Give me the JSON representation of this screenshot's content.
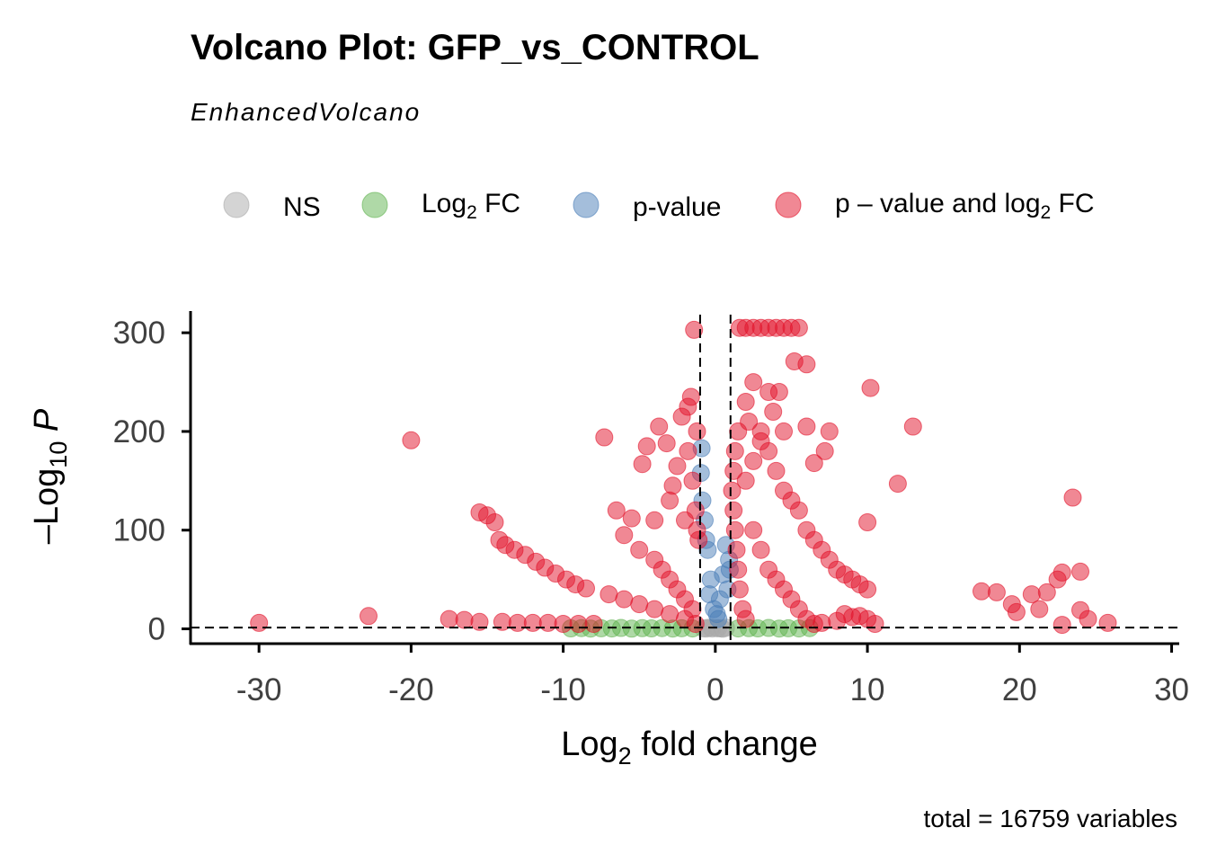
{
  "chart_data": {
    "type": "scatter",
    "title": "Volcano Plot: GFP_vs_CONTROL",
    "subtitle": "EnhancedVolcano",
    "xlabel": "Log2 fold change",
    "ylabel": "-Log10 P",
    "caption": "total = 16759 variables",
    "xlim": [
      -34.5,
      30.5
    ],
    "ylim": [
      -15,
      322
    ],
    "xticks": [
      -30,
      -20,
      -10,
      0,
      10,
      20,
      30
    ],
    "yticks": [
      0,
      100,
      200,
      300
    ],
    "fc_cutoff": [
      -1,
      1
    ],
    "p_cutoff": 1.3,
    "grid": false,
    "legend_position": "top",
    "legend": [
      {
        "key": "NS",
        "label": "NS",
        "color": "#a9a9a9"
      },
      {
        "key": "FC",
        "label": "Log",
        "sub": "2",
        "label_after": " FC",
        "color": "#5fb34f"
      },
      {
        "key": "P",
        "label": "p-value",
        "color": "#4a7db8"
      },
      {
        "key": "FC_P",
        "label": "p – value and log",
        "sub": "2",
        "label_after": " FC",
        "color": "#e2122a"
      }
    ],
    "series": [
      {
        "name": "NS",
        "color": "#a9a9a9",
        "points": [
          [
            -0.8,
            0.5
          ],
          [
            -0.5,
            1
          ],
          [
            -0.2,
            0.3
          ],
          [
            0.1,
            0.8
          ],
          [
            0.4,
            0.4
          ],
          [
            0.7,
            1.1
          ],
          [
            -0.6,
            0.2
          ],
          [
            0.2,
            0.6
          ],
          [
            -0.3,
            1.2
          ],
          [
            0.5,
            0.1
          ]
        ]
      },
      {
        "name": "FC",
        "color": "#5fb34f",
        "points": [
          [
            -9.5,
            0.5
          ],
          [
            -8.8,
            0.8
          ],
          [
            -8.2,
            0.3
          ],
          [
            -7.5,
            0.6
          ],
          [
            -6.8,
            0.4
          ],
          [
            -6.2,
            0.9
          ],
          [
            -5.5,
            0.2
          ],
          [
            -4.8,
            0.7
          ],
          [
            -4.2,
            0.5
          ],
          [
            -3.5,
            0.8
          ],
          [
            -2.8,
            0.3
          ],
          [
            -2.2,
            0.6
          ],
          [
            -1.5,
            0.4
          ],
          [
            1.5,
            0.4
          ],
          [
            2.2,
            0.7
          ],
          [
            2.8,
            0.5
          ],
          [
            3.5,
            0.9
          ],
          [
            4.2,
            0.3
          ],
          [
            4.8,
            0.6
          ],
          [
            5.5,
            0.4
          ],
          [
            6.2,
            0.8
          ]
        ]
      },
      {
        "name": "p-value",
        "color": "#4a7db8",
        "points": [
          [
            -0.9,
            183
          ],
          [
            -0.95,
            158
          ],
          [
            -0.7,
            110
          ],
          [
            -0.5,
            80
          ],
          [
            -0.3,
            50
          ],
          [
            -0.1,
            20
          ],
          [
            0.1,
            15
          ],
          [
            0.3,
            30
          ],
          [
            0.5,
            55
          ],
          [
            0.7,
            85
          ],
          [
            0.9,
            70
          ],
          [
            -0.85,
            130
          ],
          [
            -0.6,
            90
          ],
          [
            0.8,
            40
          ],
          [
            0.95,
            60
          ],
          [
            -0.4,
            35
          ],
          [
            0.2,
            10
          ]
        ]
      },
      {
        "name": "p – value and log2 FC",
        "color": "#e2122a",
        "points": [
          [
            -30,
            6
          ],
          [
            -22.8,
            13
          ],
          [
            -20,
            191
          ],
          [
            -17.5,
            10
          ],
          [
            -16.5,
            9
          ],
          [
            -15.5,
            118
          ],
          [
            -15,
            115
          ],
          [
            -14.5,
            108
          ],
          [
            -14.2,
            90
          ],
          [
            -13.8,
            85
          ],
          [
            -13.2,
            80
          ],
          [
            -12.5,
            75
          ],
          [
            -11.8,
            68
          ],
          [
            -11.2,
            62
          ],
          [
            -10.5,
            56
          ],
          [
            -9.8,
            50
          ],
          [
            -9.2,
            45
          ],
          [
            -8.5,
            41
          ],
          [
            -15.5,
            7
          ],
          [
            -14,
            7
          ],
          [
            -13,
            6
          ],
          [
            -12,
            6
          ],
          [
            -11,
            6
          ],
          [
            -10,
            5
          ],
          [
            -9,
            5
          ],
          [
            -8,
            5
          ],
          [
            -7.3,
            194
          ],
          [
            -6.5,
            120
          ],
          [
            -5.5,
            112
          ],
          [
            -4.5,
            185
          ],
          [
            -4.8,
            167
          ],
          [
            -3.7,
            205
          ],
          [
            -3.2,
            188
          ],
          [
            -2.8,
            145
          ],
          [
            -2.2,
            215
          ],
          [
            -1.8,
            225
          ],
          [
            -1.6,
            235
          ],
          [
            -1.2,
            200
          ],
          [
            -6,
            95
          ],
          [
            -5,
            80
          ],
          [
            -4,
            70
          ],
          [
            -3.5,
            60
          ],
          [
            -3,
            50
          ],
          [
            -2.5,
            40
          ],
          [
            -2,
            30
          ],
          [
            -1.5,
            20
          ],
          [
            -7,
            35
          ],
          [
            -6,
            30
          ],
          [
            -5,
            25
          ],
          [
            -4,
            20
          ],
          [
            -3,
            15
          ],
          [
            -2,
            10
          ],
          [
            -1.3,
            5
          ],
          [
            -1.5,
            150
          ],
          [
            -1.3,
            120
          ],
          [
            -1.2,
            100
          ],
          [
            -1.1,
            90
          ],
          [
            -2.5,
            165
          ],
          [
            -3,
            130
          ],
          [
            -4,
            110
          ],
          [
            -2,
            110
          ],
          [
            -1.8,
            180
          ],
          [
            -1.4,
            303
          ],
          [
            1.6,
            305
          ],
          [
            2,
            305
          ],
          [
            2.5,
            305
          ],
          [
            3,
            305
          ],
          [
            3.5,
            305
          ],
          [
            4,
            305
          ],
          [
            4.5,
            305
          ],
          [
            5,
            305
          ],
          [
            5.5,
            305
          ],
          [
            5.2,
            271
          ],
          [
            6,
            268
          ],
          [
            4.2,
            240
          ],
          [
            3.5,
            240
          ],
          [
            2.5,
            250
          ],
          [
            2,
            230
          ],
          [
            1.5,
            200
          ],
          [
            1.3,
            180
          ],
          [
            1.2,
            160
          ],
          [
            1.1,
            140
          ],
          [
            1.2,
            120
          ],
          [
            1.3,
            100
          ],
          [
            1.4,
            80
          ],
          [
            1.5,
            60
          ],
          [
            1.6,
            40
          ],
          [
            1.8,
            20
          ],
          [
            2,
            10
          ],
          [
            3,
            200
          ],
          [
            3.5,
            180
          ],
          [
            4,
            160
          ],
          [
            4.5,
            140
          ],
          [
            5,
            130
          ],
          [
            5.5,
            120
          ],
          [
            6,
            100
          ],
          [
            6.5,
            90
          ],
          [
            7,
            80
          ],
          [
            7.5,
            70
          ],
          [
            8,
            60
          ],
          [
            8.5,
            55
          ],
          [
            9,
            50
          ],
          [
            9.5,
            45
          ],
          [
            10,
            40
          ],
          [
            6,
            205
          ],
          [
            7.5,
            200
          ],
          [
            7.2,
            180
          ],
          [
            6.5,
            168
          ],
          [
            10.2,
            244
          ],
          [
            13,
            205
          ],
          [
            12,
            147
          ],
          [
            10,
            108
          ],
          [
            8.5,
            15
          ],
          [
            9,
            12
          ],
          [
            9.5,
            13
          ],
          [
            10,
            10
          ],
          [
            10.5,
            5
          ],
          [
            8,
            8
          ],
          [
            7,
            6
          ],
          [
            6.5,
            5
          ],
          [
            2.5,
            100
          ],
          [
            3,
            80
          ],
          [
            3.5,
            60
          ],
          [
            4,
            50
          ],
          [
            4.5,
            40
          ],
          [
            5,
            30
          ],
          [
            5.5,
            20
          ],
          [
            6,
            10
          ],
          [
            2,
            150
          ],
          [
            2.5,
            170
          ],
          [
            3,
            190
          ],
          [
            2.2,
            210
          ],
          [
            3.8,
            220
          ],
          [
            4.5,
            200
          ],
          [
            17.5,
            38
          ],
          [
            18.5,
            37
          ],
          [
            19.5,
            25
          ],
          [
            19.8,
            17
          ],
          [
            20.8,
            35
          ],
          [
            21.3,
            20
          ],
          [
            21.8,
            37
          ],
          [
            22.5,
            50
          ],
          [
            22.8,
            57
          ],
          [
            22.8,
            4
          ],
          [
            23.5,
            133
          ],
          [
            24,
            58
          ],
          [
            24,
            19
          ],
          [
            24.5,
            10
          ],
          [
            25.8,
            6
          ]
        ]
      }
    ]
  }
}
